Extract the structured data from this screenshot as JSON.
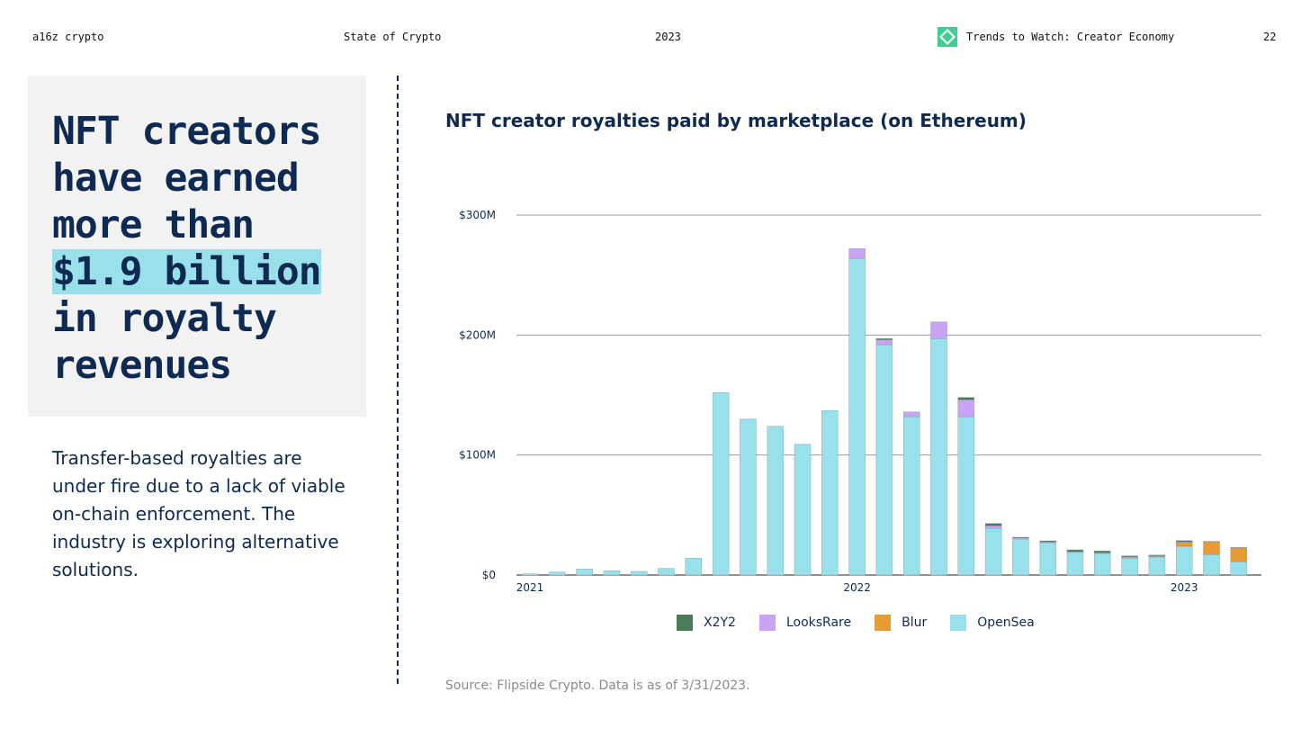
{
  "header": {
    "brand": "a16z crypto",
    "report": "State of Crypto",
    "year": "2023",
    "section": "Trends to Watch: Creator Economy",
    "page_number": "22",
    "section_icon": "green-diamond-icon",
    "section_icon_color": "#3ecf8e"
  },
  "hero": {
    "line1": "NFT creators",
    "line2": "have earned",
    "line3": "more than",
    "highlight": "$1.9 billion",
    "line5": "in royalty",
    "line6": "revenues",
    "highlight_color": "#9ae0ea"
  },
  "description": "Transfer-based royalties are under fire due to a lack of viable on-chain enforcement. The industry is exploring alternative solutions.",
  "source": "Source: Flipside Crypto. Data is as of 3/31/2023.",
  "chart_data": {
    "type": "bar",
    "stacked": true,
    "title": "NFT creator royalties paid by marketplace (on Ethereum)",
    "xlabel": "",
    "ylabel": "",
    "ylim": [
      0,
      300
    ],
    "y_unit": "$M",
    "yticks": [
      0,
      100,
      200,
      300
    ],
    "ytick_labels": [
      "$0",
      "$100M",
      "$200M",
      "$300M"
    ],
    "categories": [
      "2021-01",
      "2021-02",
      "2021-03",
      "2021-04",
      "2021-05",
      "2021-06",
      "2021-07",
      "2021-08",
      "2021-09",
      "2021-10",
      "2021-11",
      "2021-12",
      "2022-01",
      "2022-02",
      "2022-03",
      "2022-04",
      "2022-05",
      "2022-06",
      "2022-07",
      "2022-08",
      "2022-09",
      "2022-10",
      "2022-11",
      "2022-12",
      "2023-01",
      "2023-02",
      "2023-03"
    ],
    "xtick_labels": [
      {
        "index": 0,
        "label": "2021"
      },
      {
        "index": 12,
        "label": "2022"
      },
      {
        "index": 24,
        "label": "2023"
      }
    ],
    "series": [
      {
        "name": "OpenSea",
        "color": "#98e0eb",
        "values": [
          1,
          2.5,
          5,
          3.5,
          3,
          5.5,
          14,
          152,
          130,
          124,
          109,
          137,
          264,
          192,
          132,
          197,
          132,
          39,
          30,
          27,
          19,
          18,
          14,
          15,
          24,
          17,
          11
        ]
      },
      {
        "name": "Blur",
        "color": "#e89a35",
        "values": [
          0,
          0,
          0,
          0,
          0,
          0,
          0,
          0,
          0,
          0,
          0,
          0,
          0,
          0,
          0,
          0,
          0,
          0,
          0,
          0,
          0,
          0,
          1,
          1,
          3.5,
          11,
          12
        ]
      },
      {
        "name": "LooksRare",
        "color": "#caa3f5",
        "values": [
          0,
          0,
          0,
          0,
          0,
          0,
          0,
          0,
          0,
          0,
          0,
          0,
          8,
          4,
          4,
          14,
          14,
          2,
          1,
          0.5,
          0.5,
          0.5,
          0.2,
          0.2,
          0.2,
          0.1,
          0.1
        ]
      },
      {
        "name": "X2Y2",
        "color": "#4a7a56",
        "values": [
          0,
          0,
          0,
          0,
          0,
          0,
          0,
          0,
          0,
          0,
          0,
          0,
          0,
          1,
          0,
          0,
          2,
          2,
          0.5,
          1,
          1.5,
          1.5,
          0.8,
          0.5,
          1,
          0,
          0
        ]
      }
    ],
    "legend": [
      "X2Y2",
      "LooksRare",
      "Blur",
      "OpenSea"
    ],
    "legend_placement": "bottom-center",
    "grid": true
  }
}
